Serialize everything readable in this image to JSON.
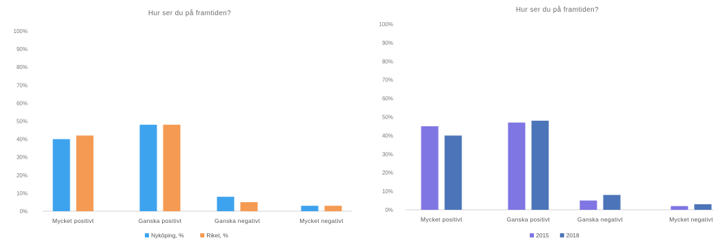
{
  "colors": {
    "nykoping": "#3ea3ee",
    "riket": "#f59a52",
    "y2015": "#7f75e3",
    "y2018": "#4c74b8",
    "axis": "#d0d0d0",
    "text": "#555555"
  },
  "chart_data": [
    {
      "type": "bar",
      "title": "Hur ser du på framtiden?",
      "categories": [
        "Mycket positivt",
        "Ganska positivt",
        "Ganska negativt",
        "Mycket negativt"
      ],
      "series": [
        {
          "name": "Nyköping, %",
          "values": [
            40,
            48,
            8,
            3
          ],
          "color_key": "nykoping"
        },
        {
          "name": "Riket, %",
          "values": [
            42,
            48,
            5,
            3
          ],
          "color_key": "riket"
        }
      ],
      "yticks": [
        "0%",
        "10%",
        "20%",
        "30%",
        "40%",
        "50%",
        "60%",
        "70%",
        "80%",
        "90%",
        "100%"
      ],
      "ylim": [
        0,
        100
      ],
      "legend": "bottom"
    },
    {
      "type": "bar",
      "title": "Hur ser du på framtiden?",
      "categories": [
        "Mycket positivt",
        "Ganska positivt",
        "Ganska negativt",
        "Mycket negativt"
      ],
      "series": [
        {
          "name": "2015",
          "values": [
            45,
            47,
            5,
            2
          ],
          "color_key": "y2015"
        },
        {
          "name": "2018",
          "values": [
            40,
            48,
            8,
            3
          ],
          "color_key": "y2018"
        }
      ],
      "yticks": [
        "0%",
        "10%",
        "20%",
        "30%",
        "40%",
        "50%",
        "60%",
        "70%",
        "80%",
        "90%",
        "100%"
      ],
      "ylim": [
        0,
        100
      ],
      "legend": "bottom"
    }
  ]
}
